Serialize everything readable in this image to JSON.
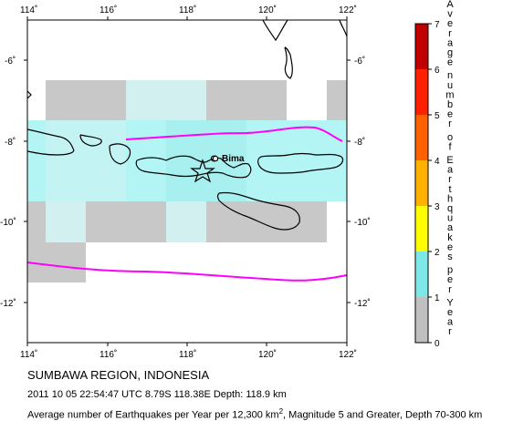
{
  "map": {
    "lon_ticks": [
      "114˚",
      "116˚",
      "118˚",
      "120˚",
      "122˚"
    ],
    "lat_ticks": [
      "-6˚",
      "-8˚",
      "-10˚",
      "-12˚"
    ],
    "city_label": "Bima",
    "colors": {
      "grid_gray": "#c8c8c8",
      "grid_light_cyan": "#d2f0f0",
      "grid_cyan": "#b0f2f2",
      "plate_boundary": "#ff00ff",
      "epicenter_star": "#000000"
    }
  },
  "legend": {
    "ticks": [
      "7",
      "6",
      "5",
      "4",
      "3",
      "2",
      "1",
      "0"
    ],
    "title_letters": [
      "A",
      "v",
      "e",
      "r",
      "a",
      "g",
      "e",
      "",
      "n",
      "u",
      "m",
      "b",
      "e",
      "r",
      "",
      "o",
      "f",
      "",
      "E",
      "a",
      "r",
      "t",
      "h",
      "q",
      "u",
      "a",
      "k",
      "e",
      "s",
      "",
      "p",
      "e",
      "r",
      "",
      "Y",
      "e",
      "a",
      "r"
    ],
    "title": "Average number of Earthquakes per Year",
    "colors": [
      "#c0c0c0",
      "#7ee8e8",
      "#ffff00",
      "#ffb000",
      "#ff6000",
      "#ff2000",
      "#e00000",
      "#a00000"
    ]
  },
  "captions": {
    "region": "SUMBAWA REGION, INDONESIA",
    "event": "2011 10 05 22:54:47 UTC 8.79S 118.38E Depth: 118.9 km",
    "note_prefix": "Average number of Earthquakes per Year per 12,300 km",
    "note_sup": "2",
    "note_suffix": ", Magnitude 5 and Greater, Depth 70-300 km"
  }
}
